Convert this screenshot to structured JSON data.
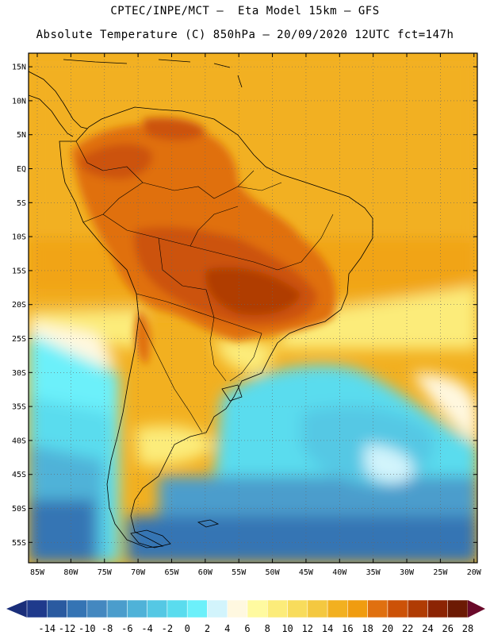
{
  "header": {
    "line1": "CPTEC/INPE/MCT –  Eta Model 15km – GFS",
    "line2": "Absolute Temperature (C) 850hPa – 20/09/2020 12UTC fct=147h"
  },
  "axes": {
    "lat_labels": [
      "15N",
      "10N",
      "5N",
      "EQ",
      "5S",
      "10S",
      "15S",
      "20S",
      "25S",
      "30S",
      "35S",
      "40S",
      "45S",
      "50S",
      "55S"
    ],
    "lat_values": [
      15,
      10,
      5,
      0,
      -5,
      -10,
      -15,
      -20,
      -25,
      -30,
      -35,
      -40,
      -45,
      -50,
      -55
    ],
    "lon_labels": [
      "85W",
      "80W",
      "75W",
      "70W",
      "65W",
      "60W",
      "55W",
      "50W",
      "45W",
      "40W",
      "35W",
      "30W",
      "25W",
      "20W"
    ],
    "lon_values": [
      -85,
      -80,
      -75,
      -70,
      -65,
      -60,
      -55,
      -50,
      -45,
      -40,
      -35,
      -30,
      -25,
      -20
    ],
    "lat_range": [
      -58,
      17
    ],
    "lon_range": [
      -86.3,
      -19.5
    ]
  },
  "colorbar": {
    "labels": [
      "-14",
      "-12",
      "-10",
      "-8",
      "-6",
      "-4",
      "-2",
      "0",
      "2",
      "4",
      "6",
      "8",
      "10",
      "12",
      "14",
      "16",
      "18",
      "20",
      "22",
      "24",
      "26",
      "28"
    ],
    "colors": [
      "#1f3a8c",
      "#2a5aa0",
      "#3574b4",
      "#4488c0",
      "#4b9dcc",
      "#4fb2d8",
      "#55c8e4",
      "#5adcee",
      "#6cf0fa",
      "#d2f4fc",
      "#fff8e0",
      "#fffaa0",
      "#fcec7a",
      "#f8dc5c",
      "#f4c840",
      "#f2b020",
      "#f09c10",
      "#e07010",
      "#cc5208",
      "#b03c04",
      "#8c2404",
      "#6c1a04"
    ],
    "under_color": "#1a2e7a",
    "over_color": "#6a0a2a"
  }
}
